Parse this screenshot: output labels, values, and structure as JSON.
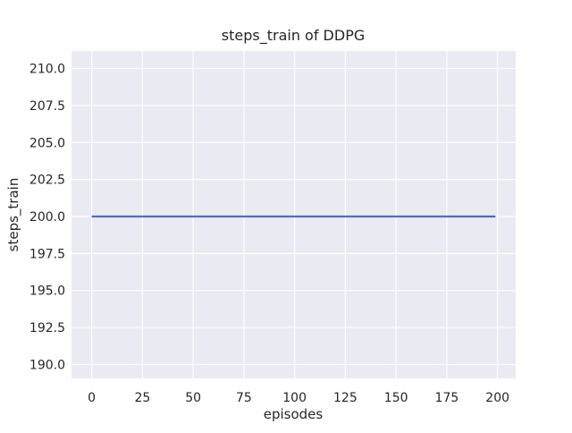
{
  "figure": {
    "background": "#ffffff"
  },
  "chart_data": {
    "type": "line",
    "title": "steps_train of DDPG",
    "xlabel": "episodes",
    "ylabel": "steps_train",
    "xlim": [
      -9.95,
      208.95
    ],
    "ylim": [
      189.06,
      211.18
    ],
    "xticks": {
      "values": [
        0,
        25,
        50,
        75,
        100,
        125,
        150,
        175,
        200
      ],
      "labels": [
        "0",
        "25",
        "50",
        "75",
        "100",
        "125",
        "150",
        "175",
        "200"
      ]
    },
    "yticks": {
      "values": [
        190.0,
        192.5,
        195.0,
        197.5,
        200.0,
        202.5,
        205.0,
        207.5,
        210.0
      ],
      "labels": [
        "190.0",
        "192.5",
        "195.0",
        "197.5",
        "200.0",
        "202.5",
        "205.0",
        "207.5",
        "210.0"
      ]
    },
    "grid": true,
    "legend": false,
    "style": {
      "plot_background": "#eaeaf2",
      "grid_color": "#ffffff",
      "line_color": "#4c72b0",
      "text_color": "#262626",
      "line_width": 2.2,
      "grid_width": 1.2
    },
    "series": [
      {
        "name": "steps_train",
        "constant_y": 200,
        "x": [
          0,
          199
        ],
        "y": [
          200,
          200
        ]
      }
    ]
  }
}
